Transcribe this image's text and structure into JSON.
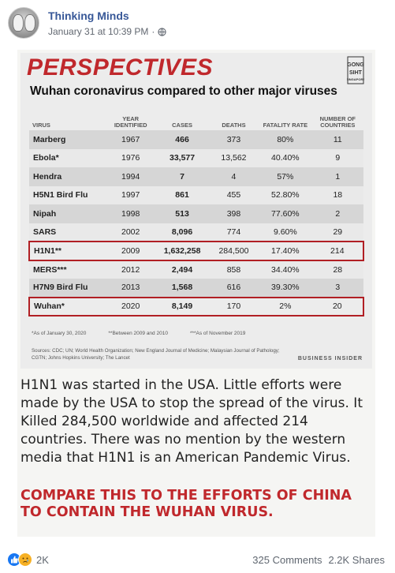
{
  "post": {
    "page_name": "Thinking Minds",
    "timestamp": "January 31 at 10:39 PM",
    "separator": "·"
  },
  "infographic": {
    "heading": "PERSPECTIVES",
    "logo_text": "GONG SIHT",
    "subtitle": "Wuhan coronavirus compared to other major viruses",
    "columns": [
      "VIRUS",
      "YEAR IDENTIFIED",
      "CASES",
      "DEATHS",
      "FATALITY RATE",
      "NUMBER OF COUNTRIES"
    ],
    "rows": [
      {
        "virus": "Marberg",
        "year": "1967",
        "cases": "466",
        "deaths": "373",
        "fatality": "80%",
        "countries": "11"
      },
      {
        "virus": "Ebola*",
        "year": "1976",
        "cases": "33,577",
        "deaths": "13,562",
        "fatality": "40.40%",
        "countries": "9"
      },
      {
        "virus": "Hendra",
        "year": "1994",
        "cases": "7",
        "deaths": "4",
        "fatality": "57%",
        "countries": "1"
      },
      {
        "virus": "H5N1 Bird Flu",
        "year": "1997",
        "cases": "861",
        "deaths": "455",
        "fatality": "52.80%",
        "countries": "18"
      },
      {
        "virus": "Nipah",
        "year": "1998",
        "cases": "513",
        "deaths": "398",
        "fatality": "77.60%",
        "countries": "2"
      },
      {
        "virus": "SARS",
        "year": "2002",
        "cases": "8,096",
        "deaths": "774",
        "fatality": "9.60%",
        "countries": "29"
      },
      {
        "virus": "H1N1**",
        "year": "2009",
        "cases": "1,632,258",
        "deaths": "284,500",
        "fatality": "17.40%",
        "countries": "214"
      },
      {
        "virus": "MERS***",
        "year": "2012",
        "cases": "2,494",
        "deaths": "858",
        "fatality": "34.40%",
        "countries": "28"
      },
      {
        "virus": "H7N9 Bird Flu",
        "year": "2013",
        "cases": "1,568",
        "deaths": "616",
        "fatality": "39.30%",
        "countries": "3"
      },
      {
        "virus": "Wuhan*",
        "year": "2020",
        "cases": "8,149",
        "deaths": "170",
        "fatality": "2%",
        "countries": "20"
      }
    ],
    "footnotes": [
      "*As of January 30, 2020",
      "**Between 2009 and 2010",
      "***As of November 2019"
    ],
    "sources": "Sources: CDC; UN; World Health Organization; New England Journal of Medicine; Malaysian Journal of Pathology; CGTN; Johns Hopkins University; The Lancet",
    "publisher": "BUSINESS INSIDER",
    "caption": "H1N1 was started in the USA. Little efforts were made by the USA to stop the spread of the virus. It Killed 284,500 worldwide and affected 214 countries. There was no mention by the western media that H1N1 is an American Pandemic Virus.",
    "callout": "COMPARE THIS TO THE EFFORTS OF CHINA TO CONTAIN THE WUHAN VIRUS."
  },
  "footer": {
    "reaction_count": "2K",
    "comments": "325 Comments",
    "shares": "2.2K Shares"
  },
  "colors": {
    "accent_red": "#c0282c",
    "link_blue": "#385898",
    "like_blue": "#1877f2"
  }
}
